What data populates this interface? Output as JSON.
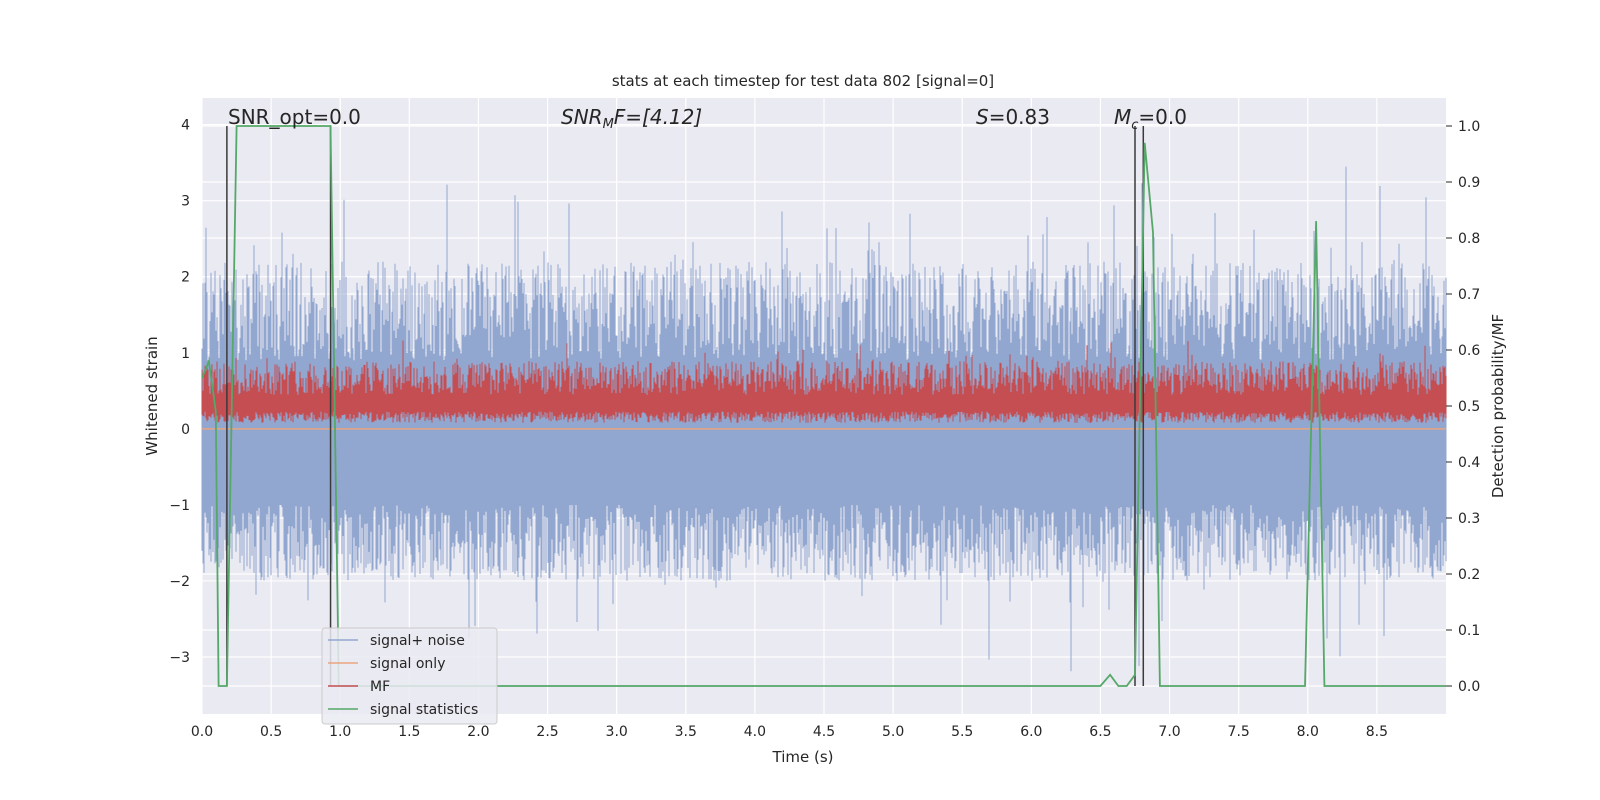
{
  "chart_data": {
    "type": "line",
    "title": "stats at each timestep for test data 802 [signal=0]",
    "xlabel": "Time (s)",
    "ylabel_left": "Whitened strain",
    "ylabel_right": "Detection probability/MF",
    "xlim": [
      0,
      9
    ],
    "ylim_left": [
      -3.75,
      4.35
    ],
    "ylim_right": [
      -0.05,
      1.05
    ],
    "x_ticks": [
      "0.0",
      "0.5",
      "1.0",
      "1.5",
      "2.0",
      "2.5",
      "3.0",
      "3.5",
      "4.0",
      "4.5",
      "5.0",
      "5.5",
      "6.0",
      "6.5",
      "7.0",
      "7.5",
      "8.0",
      "8.5"
    ],
    "y_ticks_left": [
      "−3",
      "−2",
      "−1",
      "0",
      "1",
      "2",
      "3",
      "4"
    ],
    "y_ticks_right": [
      "0.0",
      "0.1",
      "0.2",
      "0.3",
      "0.4",
      "0.5",
      "0.6",
      "0.7",
      "0.8",
      "0.9",
      "1.0"
    ],
    "grid": true,
    "annotations": {
      "snr_opt": "SNR_opt=0.0",
      "snr_mf_main": "SNR",
      "snr_mf_sub": "M",
      "snr_mf_rest": "F=[4.12]",
      "s_main": "S",
      "s_rest": "=0.83",
      "mc_main": "M",
      "mc_sub": "c",
      "mc_rest": "=0.0"
    },
    "legend": {
      "placement": "lower-left",
      "entries": [
        "signal+ noise",
        "signal only",
        "MF",
        "signal statistics"
      ]
    },
    "colors": {
      "signal_noise": "#92a7cf",
      "signal_only": "#e9a47f",
      "mf": "#c44e52",
      "stats": "#55a868",
      "vline": "#3a3a3a",
      "background": "#eaeaf2"
    },
    "vertical_lines_x": [
      0.18,
      0.93,
      6.75,
      6.81
    ],
    "series": [
      {
        "name": "signal statistics",
        "axis": "right",
        "x": [
          0.0,
          0.05,
          0.1,
          0.12,
          0.18,
          0.25,
          0.3,
          0.5,
          0.7,
          0.93,
          0.99,
          1.05,
          6.4,
          6.5,
          6.57,
          6.63,
          6.69,
          6.75,
          6.82,
          6.88,
          6.93,
          7.0,
          7.5,
          7.98,
          8.06,
          8.12,
          9.0
        ],
        "y": [
          0.55,
          0.58,
          0.49,
          0.0,
          0.0,
          1.0,
          1.0,
          1.0,
          1.0,
          1.0,
          0.0,
          0.0,
          0.0,
          0.0,
          0.02,
          0.0,
          0.0,
          0.02,
          0.97,
          0.81,
          0.0,
          0.0,
          0.0,
          0.0,
          0.83,
          0.0,
          0.0
        ]
      },
      {
        "name": "signal only",
        "axis": "left",
        "x": [
          0,
          9
        ],
        "y": [
          0,
          0
        ]
      }
    ]
  }
}
